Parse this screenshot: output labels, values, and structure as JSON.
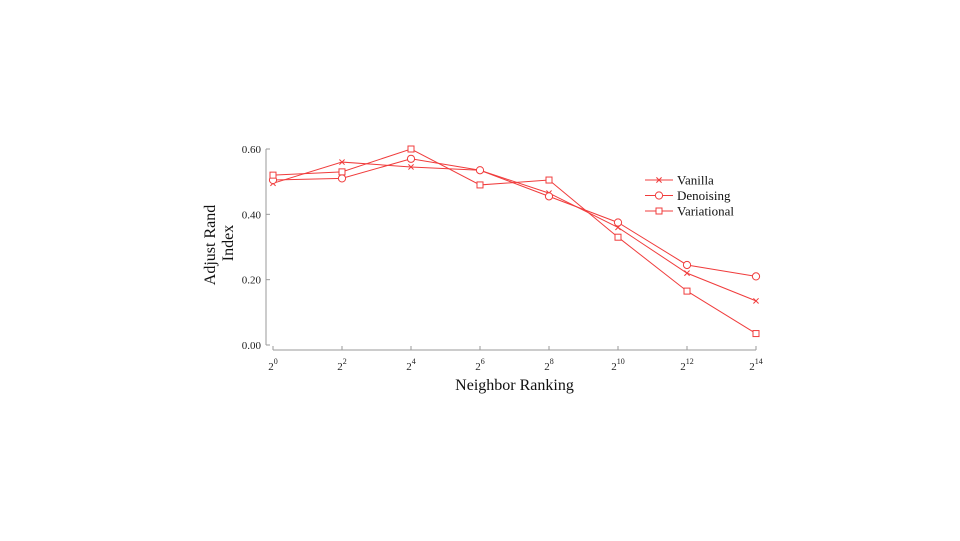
{
  "chart_data": {
    "type": "line",
    "xlabel": "Neighbor Ranking",
    "ylabel": [
      "Adjust Rand",
      "Index"
    ],
    "x": [
      0,
      2,
      4,
      6,
      8,
      10,
      12,
      14
    ],
    "x_tick_labels": [
      {
        "base": "2",
        "exp": "0"
      },
      {
        "base": "2",
        "exp": "2"
      },
      {
        "base": "2",
        "exp": "4"
      },
      {
        "base": "2",
        "exp": "6"
      },
      {
        "base": "2",
        "exp": "8"
      },
      {
        "base": "2",
        "exp": "10"
      },
      {
        "base": "2",
        "exp": "12"
      },
      {
        "base": "2",
        "exp": "14"
      }
    ],
    "xlim": [
      0,
      14
    ],
    "ylim": [
      0,
      0.6
    ],
    "y_ticks": [
      0,
      0.2,
      0.4,
      0.6
    ],
    "y_tick_labels": [
      "0.00",
      "0.20",
      "0.40",
      "0.60"
    ],
    "grid": false,
    "legend_position": "top-right",
    "line_color": "#f03c3c",
    "series": [
      {
        "name": "Vanilla",
        "marker": "x",
        "values": [
          0.495,
          0.56,
          0.545,
          0.535,
          0.465,
          0.36,
          0.22,
          0.135
        ]
      },
      {
        "name": "Denoising",
        "marker": "o",
        "values": [
          0.505,
          0.51,
          0.57,
          0.535,
          0.455,
          0.375,
          0.245,
          0.21
        ]
      },
      {
        "name": "Variational",
        "marker": "s",
        "values": [
          0.52,
          0.53,
          0.6,
          0.49,
          0.505,
          0.33,
          0.165,
          0.035
        ]
      }
    ]
  }
}
